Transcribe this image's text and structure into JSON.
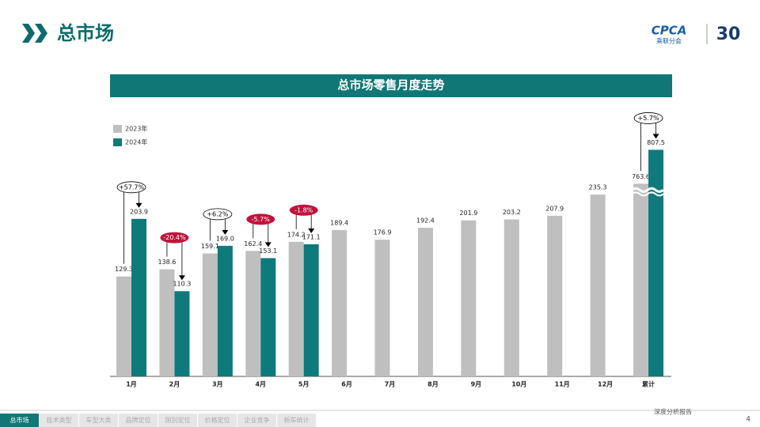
{
  "header": {
    "title": "总市场",
    "logo": "CPCA",
    "logo_sub": "乘联分会",
    "anniversary": "30"
  },
  "chart_data": {
    "type": "bar",
    "title": "总市场零售月度走势",
    "categories": [
      "1月",
      "2月",
      "3月",
      "4月",
      "5月",
      "6月",
      "7月",
      "8月",
      "9月",
      "10月",
      "11月",
      "12月",
      "累计"
    ],
    "series": [
      {
        "name": "2023年",
        "color": "#bfbfbf",
        "values": [
          129.3,
          138.6,
          159.1,
          162.4,
          174.2,
          189.4,
          176.9,
          192.4,
          201.9,
          203.2,
          207.9,
          235.3,
          763.6
        ]
      },
      {
        "name": "2024年",
        "color": "#0e7a7b",
        "values": [
          203.9,
          110.3,
          169.0,
          153.1,
          171.1,
          null,
          null,
          null,
          null,
          null,
          null,
          null,
          807.5
        ],
        "value_labels": [
          "203.9",
          "110.3",
          "169.0",
          "153.1",
          "171.1",
          null,
          null,
          null,
          null,
          null,
          null,
          null,
          "807.5"
        ]
      }
    ],
    "change_labels": [
      "+57.7%",
      "-20.4%",
      "+6.2%",
      "-5.7%",
      "-1.8%",
      null,
      null,
      null,
      null,
      null,
      null,
      null,
      "+5.7%"
    ],
    "axis_break_category": "累计",
    "legend": "top-left"
  },
  "footer": {
    "tabs": [
      "总市场",
      "技术类型",
      "车型大类",
      "品牌定位",
      "国别定位",
      "价格定位",
      "企业竞争",
      "新车统计"
    ],
    "active_tab": "总市场",
    "report": "深度分析报告",
    "page": "4"
  }
}
